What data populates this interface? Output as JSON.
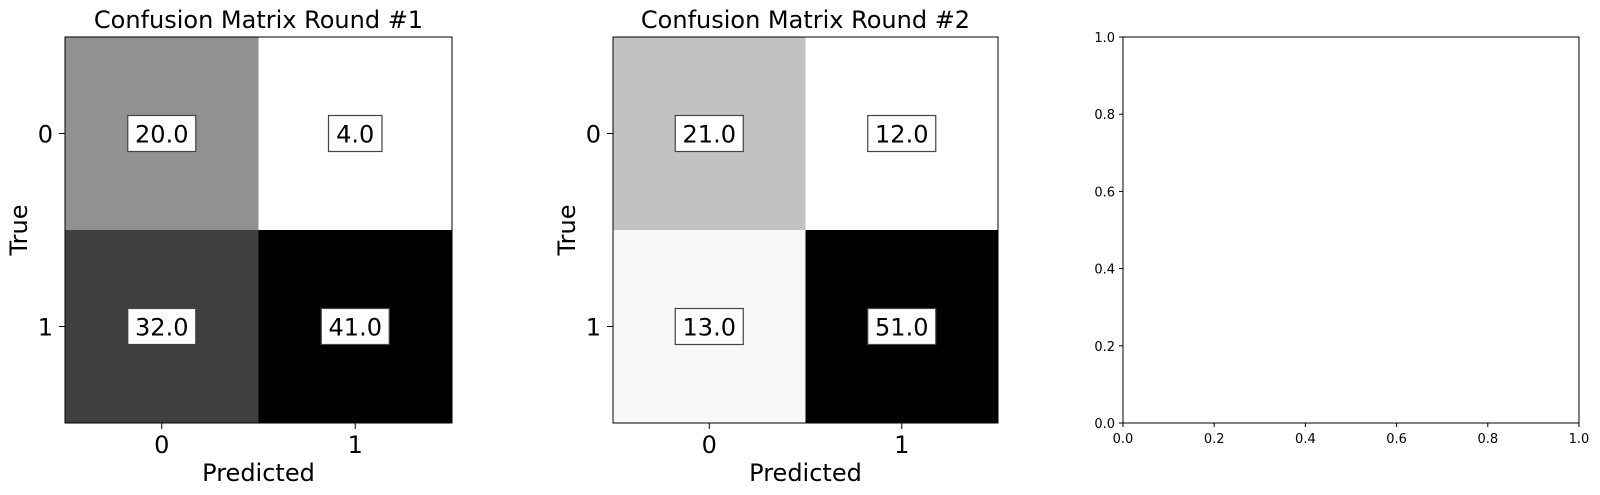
{
  "chart_data": [
    {
      "type": "heatmap",
      "title": "Confusion Matrix Round #1",
      "xlabel": "Predicted",
      "ylabel": "True",
      "x_categories": [
        "0",
        "1"
      ],
      "y_categories": [
        "0",
        "1"
      ],
      "values": [
        [
          20.0,
          4.0
        ],
        [
          32.0,
          41.0
        ]
      ],
      "value_labels": [
        [
          "20.0",
          "4.0"
        ],
        [
          "32.0",
          "41.0"
        ]
      ],
      "colormap": "gray_r",
      "cell_colors": [
        [
          "#919191",
          "#ffffff"
        ],
        [
          "#3f3f3f",
          "#000000"
        ]
      ]
    },
    {
      "type": "heatmap",
      "title": "Confusion Matrix Round #2",
      "xlabel": "Predicted",
      "ylabel": "True",
      "x_categories": [
        "0",
        "1"
      ],
      "y_categories": [
        "0",
        "1"
      ],
      "values": [
        [
          21.0,
          12.0
        ],
        [
          13.0,
          51.0
        ]
      ],
      "value_labels": [
        [
          "21.0",
          "12.0"
        ],
        [
          "13.0",
          "51.0"
        ]
      ],
      "colormap": "gray_r",
      "cell_colors": [
        [
          "#c2c2c2",
          "#ffffff"
        ],
        [
          "#f8f8f8",
          "#000000"
        ]
      ]
    },
    {
      "type": "scatter",
      "title": "",
      "xlabel": "",
      "ylabel": "",
      "xlim": [
        0.0,
        1.0
      ],
      "ylim": [
        0.0,
        1.0
      ],
      "x_ticks": [
        "0.0",
        "0.2",
        "0.4",
        "0.6",
        "0.8",
        "1.0"
      ],
      "y_ticks": [
        "0.0",
        "0.2",
        "0.4",
        "0.6",
        "0.8",
        "1.0"
      ],
      "series": []
    }
  ]
}
